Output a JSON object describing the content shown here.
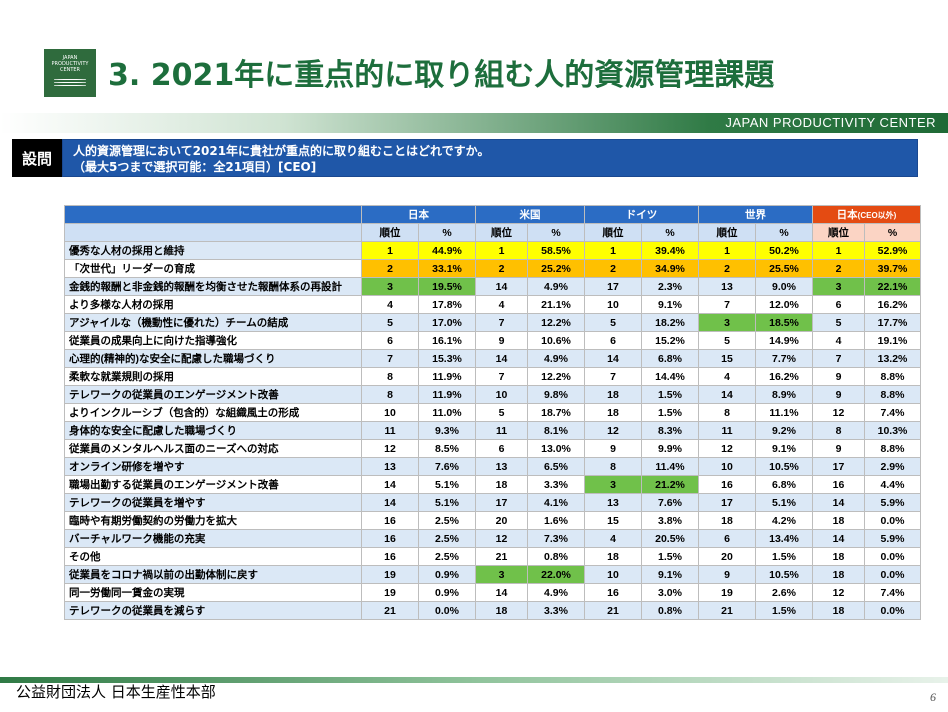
{
  "logo": {
    "line1": "JAPAN",
    "line2": "PRODUCTIVITY",
    "line3": "CENTER"
  },
  "title": "3. 2021年に重点的に取り組む人的資源管理課題",
  "band_text": "JAPAN PRODUCTIVITY CENTER",
  "question": {
    "label": "設問",
    "line1": "人的資源管理において2021年に貴社が重点的に取り組むことはどれですか。",
    "line2": "（最大5つまで選択可能：全21項目）[CEO]"
  },
  "table": {
    "groups": [
      "日本",
      "米国",
      "ドイツ",
      "世界",
      "日本(CEO以外)"
    ],
    "sub_rank": "順位",
    "sub_pct": "%",
    "rows": [
      {
        "item": "優秀な人材の採用と維持",
        "v": [
          "1",
          "44.9%",
          "1",
          "58.5%",
          "1",
          "39.4%",
          "1",
          "50.2%",
          "1",
          "52.9%"
        ],
        "hl": [
          1,
          1,
          1,
          1,
          1
        ]
      },
      {
        "item": "「次世代」リーダーの育成",
        "v": [
          "2",
          "33.1%",
          "2",
          "25.2%",
          "2",
          "34.9%",
          "2",
          "25.5%",
          "2",
          "39.7%"
        ],
        "hl": [
          2,
          2,
          2,
          2,
          2
        ]
      },
      {
        "item": "金銭的報酬と非金銭的報酬を均衡させた報酬体系の再設計",
        "v": [
          "3",
          "19.5%",
          "14",
          "4.9%",
          "17",
          "2.3%",
          "13",
          "9.0%",
          "3",
          "22.1%"
        ],
        "hl": [
          3,
          0,
          0,
          0,
          3
        ]
      },
      {
        "item": "より多様な人材の採用",
        "v": [
          "4",
          "17.8%",
          "4",
          "21.1%",
          "10",
          "9.1%",
          "7",
          "12.0%",
          "6",
          "16.2%"
        ],
        "hl": [
          0,
          0,
          0,
          0,
          0
        ]
      },
      {
        "item": "アジャイルな（機動性に優れた）チームの結成",
        "v": [
          "5",
          "17.0%",
          "7",
          "12.2%",
          "5",
          "18.2%",
          "3",
          "18.5%",
          "5",
          "17.7%"
        ],
        "hl": [
          0,
          0,
          0,
          3,
          0
        ]
      },
      {
        "item": "従業員の成果向上に向けた指導強化",
        "v": [
          "6",
          "16.1%",
          "9",
          "10.6%",
          "6",
          "15.2%",
          "5",
          "14.9%",
          "4",
          "19.1%"
        ],
        "hl": [
          0,
          0,
          0,
          0,
          0
        ]
      },
      {
        "item": "心理的(精神的)な安全に配慮した職場づくり",
        "v": [
          "7",
          "15.3%",
          "14",
          "4.9%",
          "14",
          "6.8%",
          "15",
          "7.7%",
          "7",
          "13.2%"
        ],
        "hl": [
          0,
          0,
          0,
          0,
          0
        ]
      },
      {
        "item": "柔軟な就業規則の採用",
        "v": [
          "8",
          "11.9%",
          "7",
          "12.2%",
          "7",
          "14.4%",
          "4",
          "16.2%",
          "9",
          "8.8%"
        ],
        "hl": [
          0,
          0,
          0,
          0,
          0
        ]
      },
      {
        "item": "テレワークの従業員のエンゲージメント改善",
        "v": [
          "8",
          "11.9%",
          "10",
          "9.8%",
          "18",
          "1.5%",
          "14",
          "8.9%",
          "9",
          "8.8%"
        ],
        "hl": [
          0,
          0,
          0,
          0,
          0
        ]
      },
      {
        "item": "よりインクルーシブ（包含的）な組織風土の形成",
        "v": [
          "10",
          "11.0%",
          "5",
          "18.7%",
          "18",
          "1.5%",
          "8",
          "11.1%",
          "12",
          "7.4%"
        ],
        "hl": [
          0,
          0,
          0,
          0,
          0
        ]
      },
      {
        "item": "身体的な安全に配慮した職場づくり",
        "v": [
          "11",
          "9.3%",
          "11",
          "8.1%",
          "12",
          "8.3%",
          "11",
          "9.2%",
          "8",
          "10.3%"
        ],
        "hl": [
          0,
          0,
          0,
          0,
          0
        ]
      },
      {
        "item": "従業員のメンタルヘルス面のニーズへの対応",
        "v": [
          "12",
          "8.5%",
          "6",
          "13.0%",
          "9",
          "9.9%",
          "12",
          "9.1%",
          "9",
          "8.8%"
        ],
        "hl": [
          0,
          0,
          0,
          0,
          0
        ]
      },
      {
        "item": "オンライン研修を増やす",
        "v": [
          "13",
          "7.6%",
          "13",
          "6.5%",
          "8",
          "11.4%",
          "10",
          "10.5%",
          "17",
          "2.9%"
        ],
        "hl": [
          0,
          0,
          0,
          0,
          0
        ]
      },
      {
        "item": "職場出勤する従業員のエンゲージメント改善",
        "v": [
          "14",
          "5.1%",
          "18",
          "3.3%",
          "3",
          "21.2%",
          "16",
          "6.8%",
          "16",
          "4.4%"
        ],
        "hl": [
          0,
          0,
          3,
          0,
          0
        ]
      },
      {
        "item": "テレワークの従業員を増やす",
        "v": [
          "14",
          "5.1%",
          "17",
          "4.1%",
          "13",
          "7.6%",
          "17",
          "5.1%",
          "14",
          "5.9%"
        ],
        "hl": [
          0,
          0,
          0,
          0,
          0
        ]
      },
      {
        "item": "臨時や有期労働契約の労働力を拡大",
        "v": [
          "16",
          "2.5%",
          "20",
          "1.6%",
          "15",
          "3.8%",
          "18",
          "4.2%",
          "18",
          "0.0%"
        ],
        "hl": [
          0,
          0,
          0,
          0,
          0
        ]
      },
      {
        "item": "バーチャルワーク機能の充実",
        "v": [
          "16",
          "2.5%",
          "12",
          "7.3%",
          "4",
          "20.5%",
          "6",
          "13.4%",
          "14",
          "5.9%"
        ],
        "hl": [
          0,
          0,
          0,
          0,
          0
        ]
      },
      {
        "item": "その他",
        "v": [
          "16",
          "2.5%",
          "21",
          "0.8%",
          "18",
          "1.5%",
          "20",
          "1.5%",
          "18",
          "0.0%"
        ],
        "hl": [
          0,
          0,
          0,
          0,
          0
        ]
      },
      {
        "item": "従業員をコロナ禍以前の出勤体制に戻す",
        "v": [
          "19",
          "0.9%",
          "3",
          "22.0%",
          "10",
          "9.1%",
          "9",
          "10.5%",
          "18",
          "0.0%"
        ],
        "hl": [
          0,
          3,
          0,
          0,
          0
        ]
      },
      {
        "item": "同一労働同一賃金の実現",
        "v": [
          "19",
          "0.9%",
          "14",
          "4.9%",
          "16",
          "3.0%",
          "19",
          "2.6%",
          "12",
          "7.4%"
        ],
        "hl": [
          0,
          0,
          0,
          0,
          0
        ]
      },
      {
        "item": "テレワークの従業員を減らす",
        "v": [
          "21",
          "0.0%",
          "18",
          "3.3%",
          "21",
          "0.8%",
          "21",
          "1.5%",
          "18",
          "0.0%"
        ],
        "hl": [
          0,
          0,
          0,
          0,
          0
        ]
      }
    ]
  },
  "colors": {
    "rank1": "#ffff00",
    "rank2": "#ffc000",
    "rank3": "#70c14a",
    "header_blue": "#2b6cc4",
    "header_red": "#e44b12"
  },
  "footer": "公益財団法人 日本生産性本部",
  "page_number": "6"
}
